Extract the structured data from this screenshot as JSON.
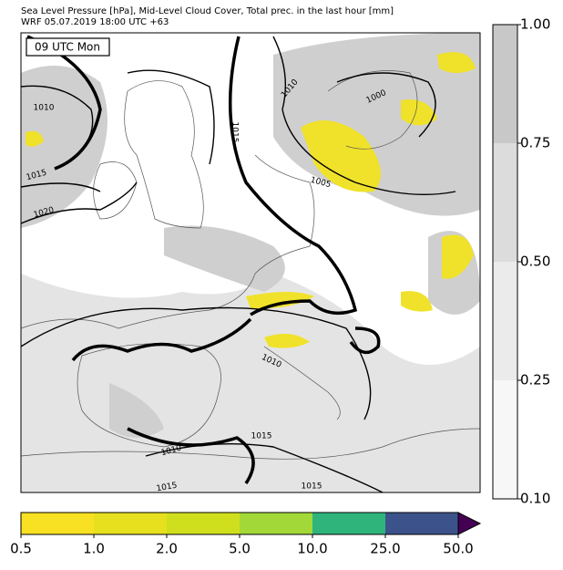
{
  "header": {
    "title": "Sea Level Pressure [hPa], Mid-Level Cloud Cover, Total prec. in the last hour [mm]",
    "subtitle": "WRF 05.07.2019 18:00 UTC +63"
  },
  "map": {
    "time_label": "09 UTC Mon",
    "isobar_labels": [
      1010,
      1015,
      1020,
      1015,
      1010,
      1000,
      1005,
      1010,
      1015,
      1010,
      1015,
      1015
    ]
  },
  "cloud_colorbar": {
    "ticks": [
      {
        "value": 0.1,
        "label": "0.10"
      },
      0.25,
      {
        "value": 0.5,
        "label": "0.50"
      },
      0.75,
      {
        "value": 1,
        "label": "1.00"
      }
    ],
    "colors": [
      "#f7f7f7",
      "#ebebeb",
      "#dcdcdc",
      "#c8c8c8"
    ]
  },
  "precip_colorbar": {
    "ticks": [
      0.5,
      {
        "value": 1,
        "label": "1.0"
      },
      {
        "value": 2,
        "label": "2.0"
      },
      {
        "value": 5,
        "label": "5.0"
      },
      {
        "value": 10,
        "label": "10.0"
      },
      {
        "value": 25,
        "label": "25.0"
      },
      {
        "value": 50,
        "label": "50.0"
      }
    ],
    "colors": [
      "#f8e122",
      "#e6e01e",
      "#d0df1d",
      "#a2d938",
      "#2fb47c",
      "#3b528b"
    ],
    "extend_color": "#440154"
  }
}
